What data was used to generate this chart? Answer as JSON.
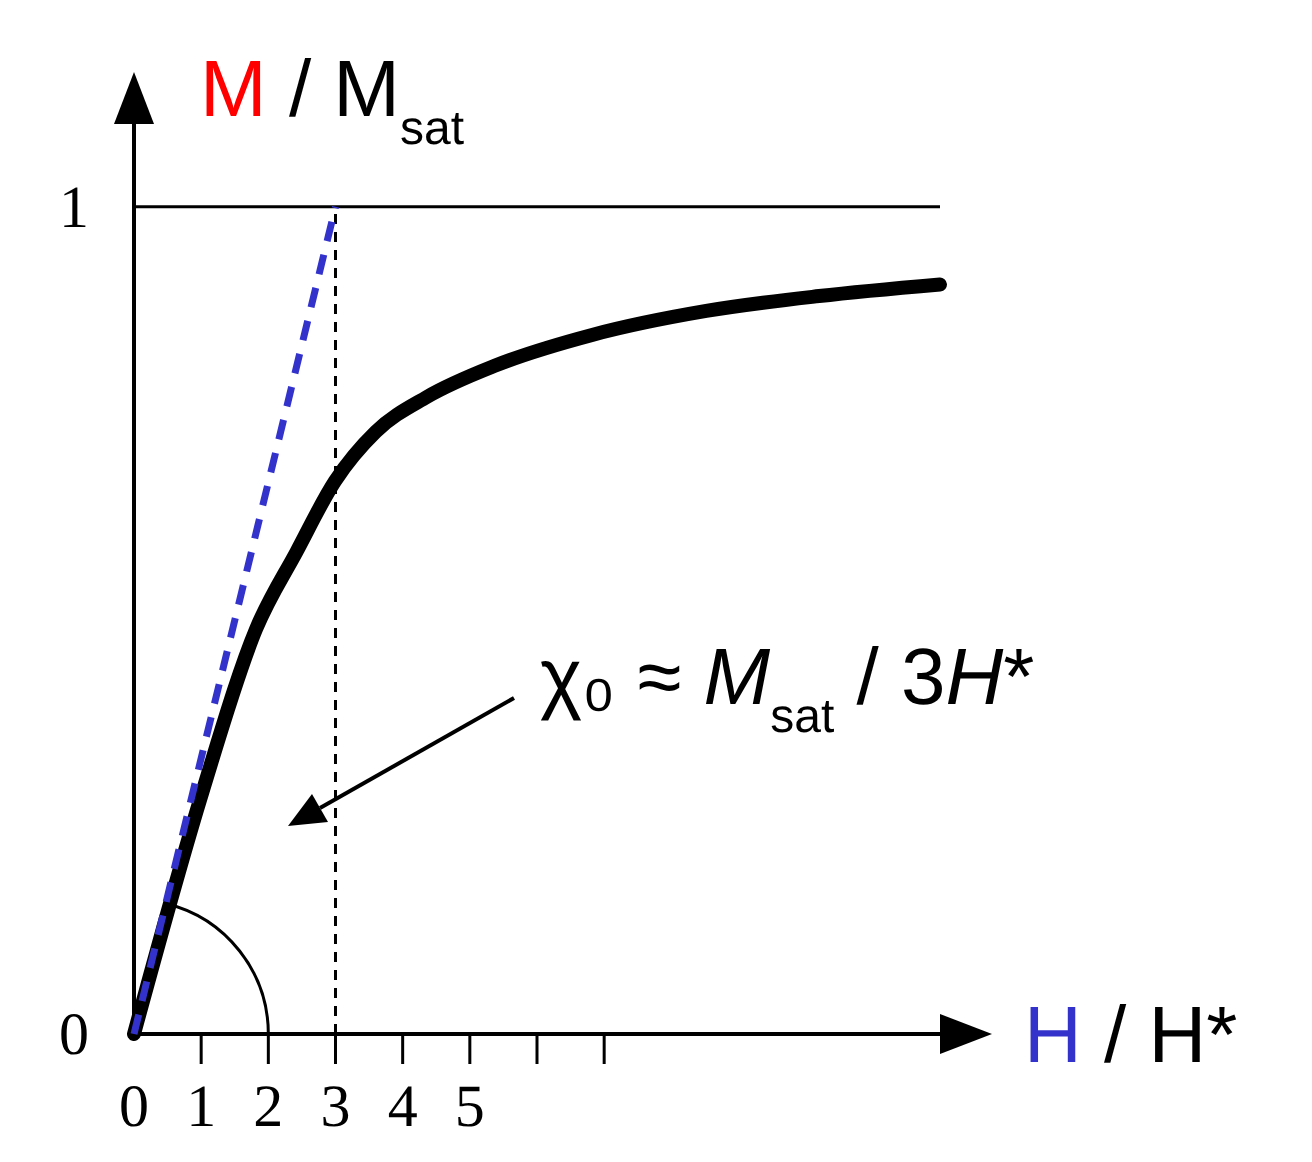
{
  "chart_data": {
    "type": "line",
    "ylabel": "M / M$_{sat}$",
    "xlabel": "H / H*",
    "xlim": [
      0,
      12
    ],
    "ylim": [
      0,
      1.1
    ],
    "xticks": [
      0,
      1,
      2,
      3,
      4,
      5,
      {
        "value": 6,
        "label": null
      },
      {
        "value": 7,
        "label": null
      }
    ],
    "yticks": [
      0,
      1
    ],
    "grid": false,
    "marker": "none",
    "series": [
      {
        "color": "#000000",
        "x": [
          0,
          1.02,
          1.82,
          2.42,
          2.99,
          3.6,
          4.36,
          5.38,
          6.82,
          8.52,
          10.2,
          12
        ],
        "values": [
          0,
          0.293,
          0.49,
          0.583,
          0.668,
          0.728,
          0.77,
          0.808,
          0.845,
          0.874,
          0.892,
          0.906
        ],
        "line_style": "solid"
      },
      {
        "color": "#3333cc",
        "x": [
          0,
          3
        ],
        "values": [
          0,
          1
        ],
        "line_style": "dashed"
      }
    ],
    "ref_lines": [
      {
        "axis": "y",
        "value": 1,
        "color": "#000000",
        "line_style": "solid"
      },
      {
        "axis": "x",
        "value": 3,
        "color": "#000000",
        "line_style": "dashed"
      }
    ],
    "annotations": [
      "χ₀ ≈ M$_{sat}$ / 3H*"
    ]
  }
}
